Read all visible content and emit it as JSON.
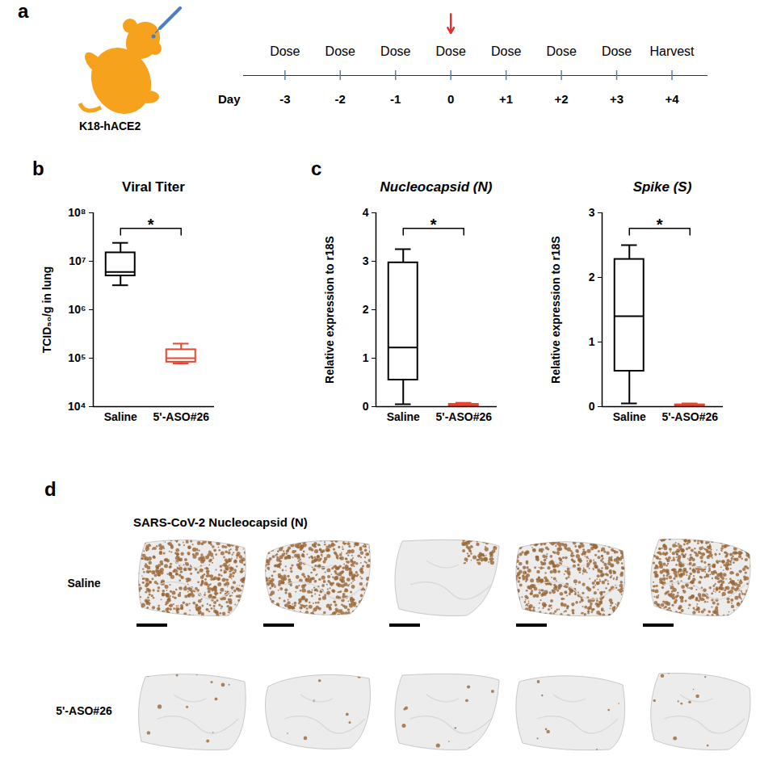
{
  "panel_a": {
    "letter": "a",
    "model": "K18-hACE2",
    "axis_label": "Day",
    "xlim": [
      -3.75,
      4.65
    ],
    "days": [
      {
        "value": -3,
        "label": "-3"
      },
      {
        "value": -2,
        "label": "-2"
      },
      {
        "value": -1,
        "label": "-1"
      },
      0,
      {
        "value": 1,
        "label": "+1"
      },
      {
        "value": 2,
        "label": "+2"
      },
      {
        "value": 3,
        "label": "+3"
      },
      {
        "value": 4,
        "label": "+4"
      }
    ],
    "events": [
      "Dose",
      "Dose",
      "Dose",
      "Dose",
      "Dose",
      "Dose",
      "Dose",
      "Harvest"
    ],
    "arrow_day": 0,
    "arrow_color": "#e2312b"
  },
  "chart_data": [
    {
      "letter": "b",
      "type": "box",
      "title": "Viral Titer",
      "ylabel": "TCID₅₀/g in lung",
      "categories": [
        "Saline",
        "5'-ASO#26"
      ],
      "colors": [
        "#000000",
        "#e8462e"
      ],
      "values": [
        {
          "min": 3200000,
          "q1": 5000000,
          "median": 6000000,
          "q3": 15000000,
          "max": 24000000
        },
        {
          "min": 78000,
          "q1": 83000,
          "median": 100000,
          "q3": 150000,
          "max": 200000
        }
      ],
      "log": "y",
      "ylim": [
        10000,
        100000000
      ],
      "yticks": [
        {
          "value": 10000,
          "label": "10⁴"
        },
        {
          "value": 100000,
          "label": "10⁵"
        },
        {
          "value": 1000000,
          "label": "10⁶"
        },
        {
          "value": 10000000,
          "label": "10⁷"
        },
        {
          "value": 100000000,
          "label": "10⁸"
        }
      ],
      "significance": [
        {
          "from": "Saline",
          "to": "5'-ASO#26",
          "label": "*"
        }
      ]
    },
    {
      "letter": "c",
      "type": "box",
      "title": "Nucleocapsid (N)",
      "ylabel": "Relative expression to r18S",
      "categories": [
        "Saline",
        "5'-ASO#26"
      ],
      "colors": [
        "#000000",
        "#e8462e"
      ],
      "values": [
        {
          "min": 0.05,
          "q1": 0.55,
          "median": 1.22,
          "q3": 2.97,
          "max": 3.25
        },
        {
          "min": 0,
          "q1": 0.01,
          "median": 0.03,
          "q3": 0.05,
          "max": 0.08
        }
      ],
      "ylim": [
        0,
        4
      ],
      "yticks": [
        0,
        1,
        2,
        3,
        4
      ],
      "significance": [
        {
          "from": "Saline",
          "to": "5'-ASO#26",
          "label": "*"
        }
      ]
    },
    {
      "type": "box",
      "title": "Spike (S)",
      "ylabel": "Relative expression to r18S",
      "categories": [
        "Saline",
        "5'-ASO#26"
      ],
      "colors": [
        "#000000",
        "#e8462e"
      ],
      "values": [
        {
          "min": 0.05,
          "q1": 0.55,
          "median": 1.4,
          "q3": 2.28,
          "max": 2.5
        },
        {
          "min": 0,
          "q1": 0.01,
          "median": 0.02,
          "q3": 0.03,
          "max": 0.05
        }
      ],
      "ylim": [
        0,
        3
      ],
      "yticks": [
        0,
        1,
        2,
        3
      ],
      "significance": [
        {
          "from": "Saline",
          "to": "5'-ASO#26",
          "label": "*"
        }
      ]
    }
  ],
  "panel_d": {
    "letter": "d",
    "title": "SARS-CoV-2 Nucleocapsid (N)",
    "rows": [
      {
        "label": "Saline",
        "images": 5,
        "scale_bar": true
      },
      {
        "label": "5'-ASO#26",
        "images": 5,
        "scale_bar": false
      }
    ]
  }
}
